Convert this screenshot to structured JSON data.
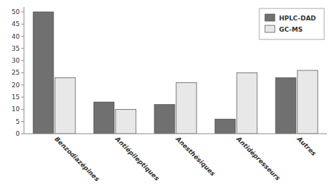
{
  "chart_data": {
    "type": "bar",
    "categories": [
      "Benzodiazépines",
      "Antiépileptiques",
      "Anesthésiques",
      "Antidépresseurs",
      "Autres"
    ],
    "series": [
      {
        "name": "HPLC-DAD",
        "color": "#707070",
        "values": [
          50,
          13,
          12,
          6,
          23
        ]
      },
      {
        "name": "GC-MS",
        "color": "#e8e8e8",
        "values": [
          23,
          10,
          21,
          25,
          26
        ]
      }
    ],
    "ylim": [
      0,
      52
    ],
    "yticks": [
      0,
      5,
      10,
      15,
      20,
      25,
      30,
      35,
      40,
      45,
      50
    ],
    "grid": false,
    "legend": "top-right"
  }
}
